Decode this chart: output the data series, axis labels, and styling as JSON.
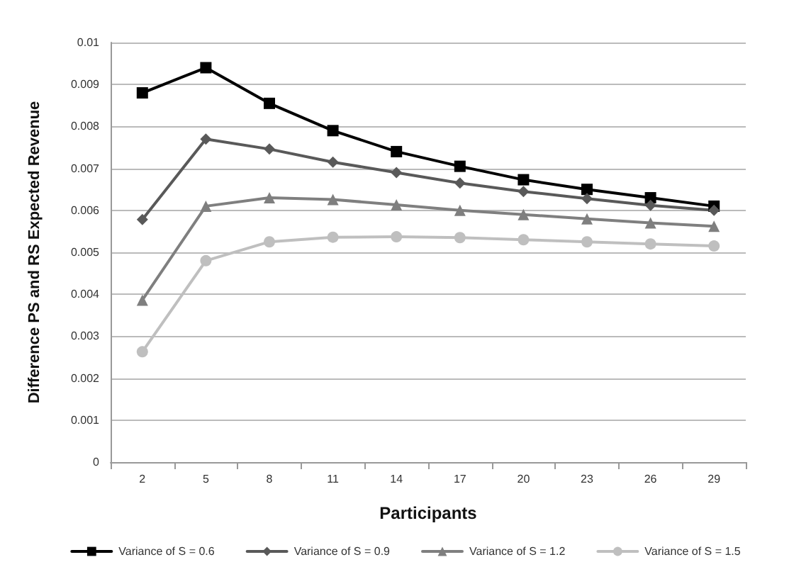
{
  "chart_data": {
    "type": "line",
    "xlabel": "Participants",
    "ylabel": "Difference PS and RS Expected Revenue",
    "categories": [
      "2",
      "5",
      "8",
      "11",
      "14",
      "17",
      "20",
      "23",
      "26",
      "29"
    ],
    "series": [
      {
        "name": "Variance of S = 0.6",
        "color": "#000000",
        "marker": "square",
        "values": [
          0.0088,
          0.0094,
          0.00855,
          0.0079,
          0.0074,
          0.00705,
          0.00673,
          0.0065,
          0.0063,
          0.0061
        ]
      },
      {
        "name": "Variance of S = 0.9",
        "color": "#595959",
        "marker": "diamond",
        "values": [
          0.00578,
          0.0077,
          0.00746,
          0.00715,
          0.0069,
          0.00665,
          0.00645,
          0.00628,
          0.00612,
          0.006
        ]
      },
      {
        "name": "Variance of S = 1.2",
        "color": "#7f7f7f",
        "marker": "triangle",
        "values": [
          0.00386,
          0.0061,
          0.0063,
          0.00626,
          0.00613,
          0.006,
          0.0059,
          0.0058,
          0.0057,
          0.00562
        ]
      },
      {
        "name": "Variance of S = 1.5",
        "color": "#bfbfbf",
        "marker": "circle",
        "values": [
          0.00263,
          0.0048,
          0.00525,
          0.00536,
          0.00537,
          0.00535,
          0.0053,
          0.00525,
          0.0052,
          0.00515
        ]
      }
    ],
    "ylim": [
      0,
      0.01
    ],
    "yticks": [
      0,
      0.001,
      0.002,
      0.003,
      0.004,
      0.005,
      0.006,
      0.007,
      0.008,
      0.009,
      0.01
    ],
    "grid": "y",
    "legend": "bottom",
    "line_style": "solid"
  }
}
